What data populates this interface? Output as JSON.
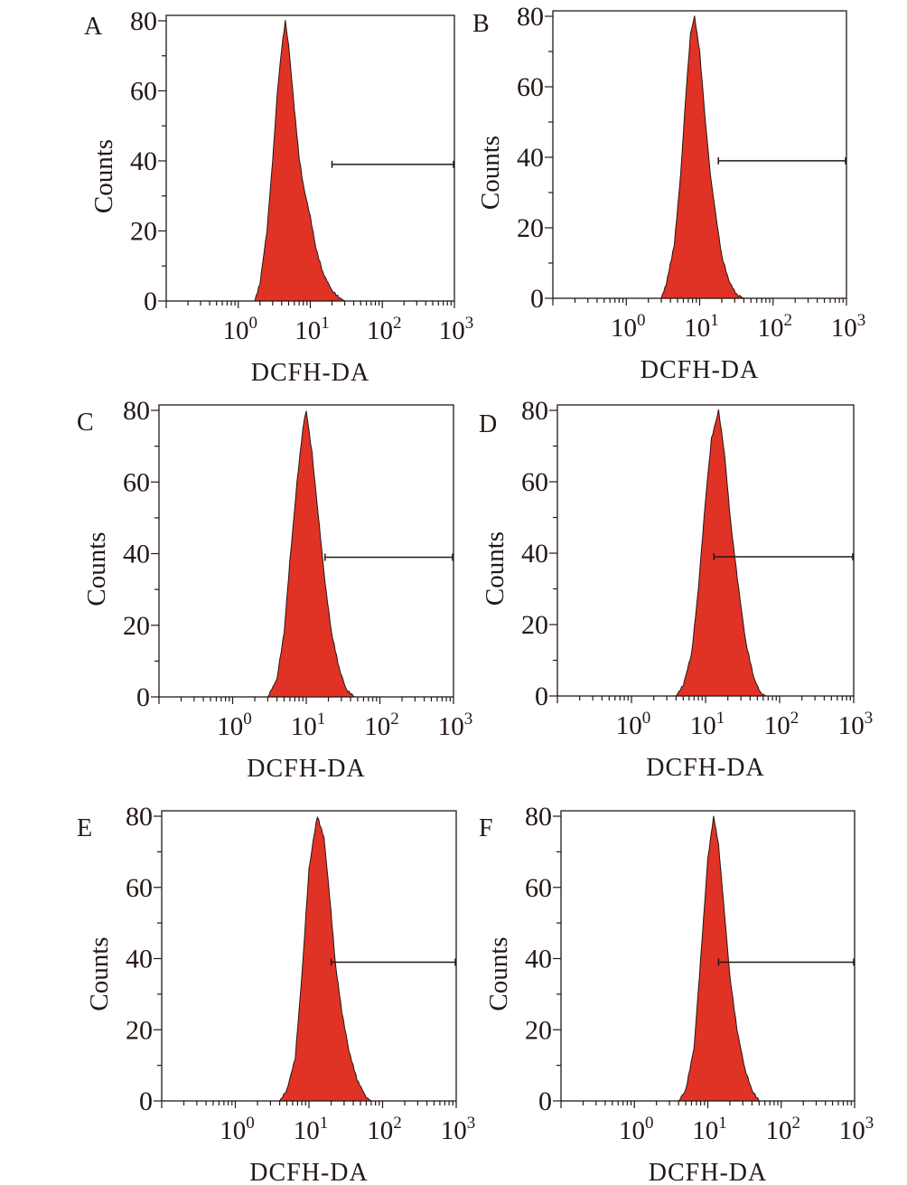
{
  "chart_data": [
    {
      "panel": "A",
      "type": "area",
      "xscale": "log",
      "xlim": [
        0.1,
        1000
      ],
      "ylim": [
        0,
        80
      ],
      "xlabel": "DCFH-DA",
      "ylabel": "Counts",
      "yticks": [
        "0",
        "20",
        "40",
        "60",
        "80"
      ],
      "xticks": [
        {
          "base": "10",
          "exp": "0"
        },
        {
          "base": "10",
          "exp": "1"
        },
        {
          "base": "10",
          "exp": "2"
        },
        {
          "base": "10",
          "exp": "3"
        }
      ],
      "gate": {
        "from": 20,
        "to": 1000,
        "level": 39
      },
      "points": [
        [
          1.7,
          0
        ],
        [
          2,
          5
        ],
        [
          2.5,
          20
        ],
        [
          3,
          40
        ],
        [
          3.5,
          60
        ],
        [
          4,
          72
        ],
        [
          4.5,
          80
        ],
        [
          5,
          73
        ],
        [
          6,
          55
        ],
        [
          7,
          41
        ],
        [
          8,
          33
        ],
        [
          10,
          24
        ],
        [
          12,
          15
        ],
        [
          15,
          8
        ],
        [
          20,
          3
        ],
        [
          25,
          1
        ],
        [
          30,
          0
        ]
      ]
    },
    {
      "panel": "B",
      "type": "area",
      "xscale": "log",
      "xlim": [
        0.1,
        1000
      ],
      "ylim": [
        0,
        80
      ],
      "xlabel": "DCFH-DA",
      "ylabel": "Counts",
      "yticks": [
        "0",
        "20",
        "40",
        "60",
        "80"
      ],
      "xticks": [
        {
          "base": "10",
          "exp": "0"
        },
        {
          "base": "10",
          "exp": "1"
        },
        {
          "base": "10",
          "exp": "2"
        },
        {
          "base": "10",
          "exp": "3"
        }
      ],
      "gate": {
        "from": 18,
        "to": 1000,
        "level": 39
      },
      "points": [
        [
          3,
          0
        ],
        [
          3.5,
          4
        ],
        [
          4.5,
          15
        ],
        [
          5.5,
          35
        ],
        [
          6.5,
          58
        ],
        [
          7.5,
          75
        ],
        [
          8.5,
          80
        ],
        [
          10,
          70
        ],
        [
          12,
          50
        ],
        [
          14,
          35
        ],
        [
          17,
          22
        ],
        [
          20,
          12
        ],
        [
          25,
          5
        ],
        [
          32,
          1
        ],
        [
          40,
          0
        ]
      ]
    },
    {
      "panel": "C",
      "type": "area",
      "xscale": "log",
      "xlim": [
        0.1,
        1000
      ],
      "ylim": [
        0,
        80
      ],
      "xlabel": "DCFH-DA",
      "ylabel": "Counts",
      "yticks": [
        "0",
        "20",
        "40",
        "60",
        "80"
      ],
      "xticks": [
        {
          "base": "10",
          "exp": "0"
        },
        {
          "base": "10",
          "exp": "1"
        },
        {
          "base": "10",
          "exp": "2"
        },
        {
          "base": "10",
          "exp": "3"
        }
      ],
      "gate": {
        "from": 18,
        "to": 1000,
        "level": 39
      },
      "points": [
        [
          3,
          0
        ],
        [
          4,
          5
        ],
        [
          5,
          18
        ],
        [
          6,
          38
        ],
        [
          7.5,
          60
        ],
        [
          9,
          75
        ],
        [
          10,
          80
        ],
        [
          12,
          68
        ],
        [
          15,
          48
        ],
        [
          18,
          32
        ],
        [
          22,
          18
        ],
        [
          28,
          8
        ],
        [
          35,
          2
        ],
        [
          45,
          0
        ]
      ]
    },
    {
      "panel": "D",
      "type": "area",
      "xscale": "log",
      "xlim": [
        0.1,
        1000
      ],
      "ylim": [
        0,
        80
      ],
      "xlabel": "DCFH-DA",
      "ylabel": "Counts",
      "yticks": [
        "0",
        "20",
        "40",
        "60",
        "80"
      ],
      "xticks": [
        {
          "base": "10",
          "exp": "0"
        },
        {
          "base": "10",
          "exp": "1"
        },
        {
          "base": "10",
          "exp": "2"
        },
        {
          "base": "10",
          "exp": "3"
        }
      ],
      "gate": {
        "from": 13,
        "to": 1000,
        "level": 39
      },
      "points": [
        [
          4,
          0
        ],
        [
          5,
          3
        ],
        [
          6.5,
          12
        ],
        [
          8,
          30
        ],
        [
          10,
          55
        ],
        [
          12,
          72
        ],
        [
          15,
          80
        ],
        [
          18,
          68
        ],
        [
          22,
          48
        ],
        [
          28,
          30
        ],
        [
          35,
          15
        ],
        [
          45,
          5
        ],
        [
          55,
          1
        ],
        [
          65,
          0
        ]
      ]
    },
    {
      "panel": "E",
      "type": "area",
      "xscale": "log",
      "xlim": [
        0.1,
        1000
      ],
      "ylim": [
        0,
        80
      ],
      "xlabel": "DCFH-DA",
      "ylabel": "Counts",
      "yticks": [
        "0",
        "20",
        "40",
        "60",
        "80"
      ],
      "xticks": [
        {
          "base": "10",
          "exp": "0"
        },
        {
          "base": "10",
          "exp": "1"
        },
        {
          "base": "10",
          "exp": "2"
        },
        {
          "base": "10",
          "exp": "3"
        }
      ],
      "gate": {
        "from": 20,
        "to": 1000,
        "level": 39
      },
      "points": [
        [
          4,
          0
        ],
        [
          5,
          3
        ],
        [
          6.5,
          12
        ],
        [
          8,
          35
        ],
        [
          10,
          65
        ],
        [
          12,
          76
        ],
        [
          13,
          80
        ],
        [
          16,
          74
        ],
        [
          19,
          58
        ],
        [
          23,
          38
        ],
        [
          28,
          25
        ],
        [
          35,
          14
        ],
        [
          45,
          6
        ],
        [
          60,
          1
        ],
        [
          70,
          0
        ]
      ]
    },
    {
      "panel": "F",
      "type": "area",
      "xscale": "log",
      "xlim": [
        0.1,
        1000
      ],
      "ylim": [
        0,
        80
      ],
      "xlabel": "DCFH-DA",
      "ylabel": "Counts",
      "yticks": [
        "0",
        "20",
        "40",
        "60",
        "80"
      ],
      "xticks": [
        {
          "base": "10",
          "exp": "0"
        },
        {
          "base": "10",
          "exp": "1"
        },
        {
          "base": "10",
          "exp": "2"
        },
        {
          "base": "10",
          "exp": "3"
        }
      ],
      "gate": {
        "from": 14,
        "to": 1000,
        "level": 39
      },
      "points": [
        [
          4,
          0
        ],
        [
          5,
          3
        ],
        [
          6.5,
          15
        ],
        [
          8,
          40
        ],
        [
          10,
          68
        ],
        [
          12,
          80
        ],
        [
          14,
          72
        ],
        [
          17,
          52
        ],
        [
          20,
          35
        ],
        [
          25,
          20
        ],
        [
          32,
          9
        ],
        [
          40,
          3
        ],
        [
          50,
          0
        ]
      ]
    }
  ],
  "colors": {
    "fill": "#e03325",
    "outline": "#231815",
    "axis": "#231815"
  }
}
